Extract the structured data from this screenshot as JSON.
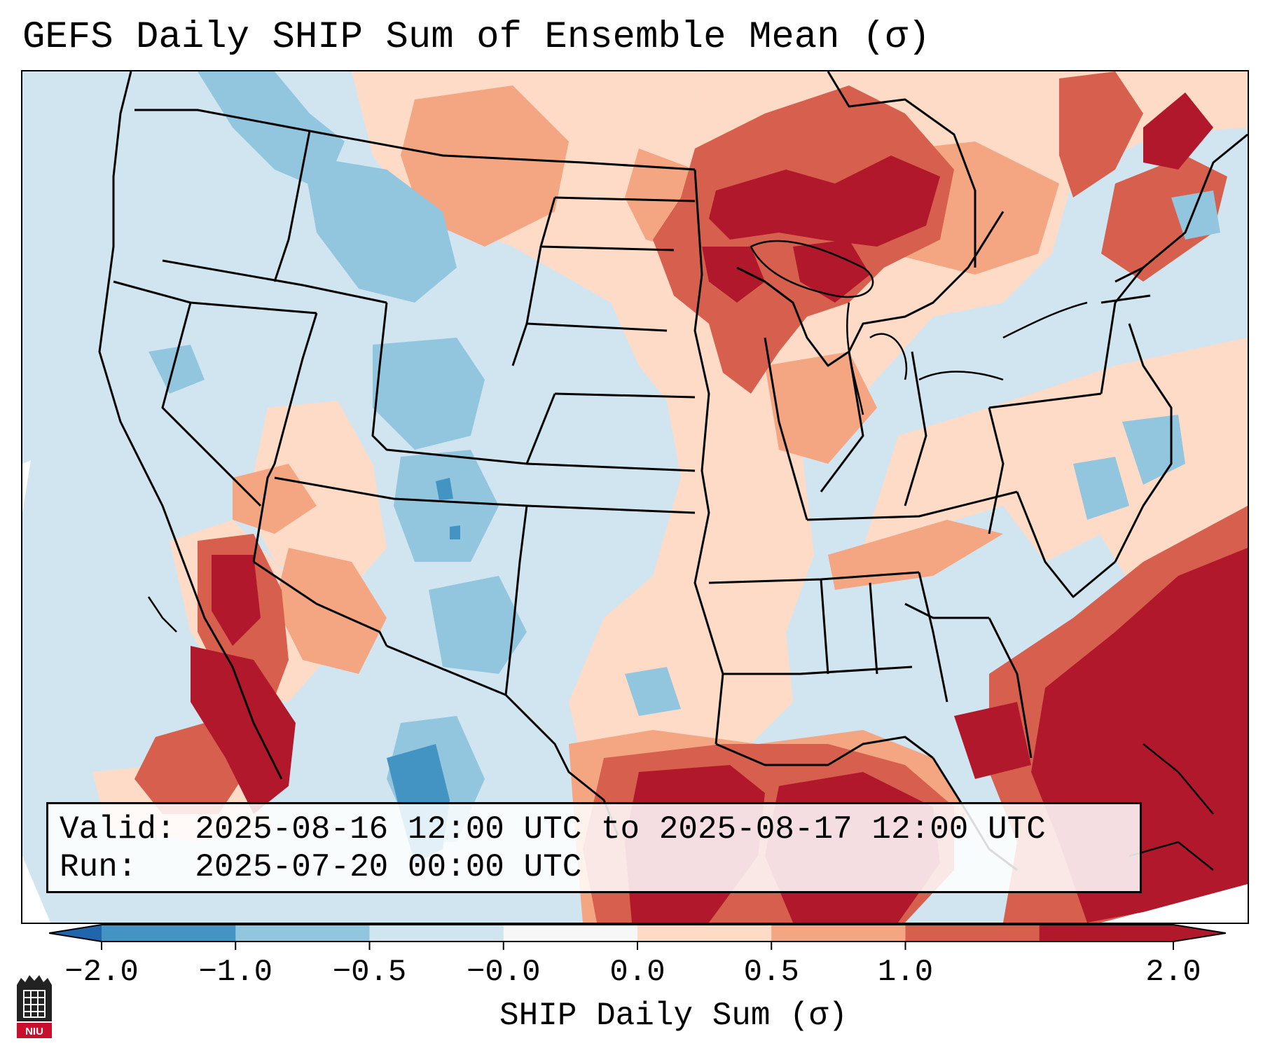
{
  "title": "GEFS Daily SHIP Sum of Ensemble Mean (σ)",
  "valid_label": "Valid: 2025-08-16 12:00 UTC to 2025-08-17 12:00 UTC",
  "run_label": "Run:   2025-07-20 00:00 UTC",
  "colorbar": {
    "title": "SHIP Daily Sum (σ)",
    "ticks": [
      "−2.0",
      "−1.0",
      "−0.5",
      "−0.0",
      "0.0",
      "0.5",
      "1.0",
      "2.0"
    ],
    "colors": [
      "#4393c3",
      "#92c5de",
      "#d1e5f0",
      "#f7f7f7",
      "#fddbc7",
      "#f4a582",
      "#d6604d",
      "#b2182b"
    ],
    "under_color": "#2166ac",
    "over_color": "#b2182b"
  },
  "map": {
    "regions": [
      {
        "name": "pacific-northwest",
        "category": "light-blue"
      },
      {
        "name": "northern-rockies",
        "category": "medium-blue"
      },
      {
        "name": "northern-plains",
        "category": "light-red"
      },
      {
        "name": "upper-midwest-great-lakes",
        "category": "red"
      },
      {
        "name": "lake-superior",
        "category": "dark-red"
      },
      {
        "name": "southwest-desert",
        "category": "dark-red"
      },
      {
        "name": "central-plains",
        "category": "light-blue"
      },
      {
        "name": "new-mexico-west-texas",
        "category": "medium-blue"
      },
      {
        "name": "southeast",
        "category": "light-red"
      },
      {
        "name": "mid-atlantic",
        "category": "light-blue"
      },
      {
        "name": "gulf-of-mexico",
        "category": "dark-red"
      },
      {
        "name": "western-atlantic",
        "category": "dark-red"
      }
    ]
  },
  "logo": {
    "text": "NIU"
  }
}
